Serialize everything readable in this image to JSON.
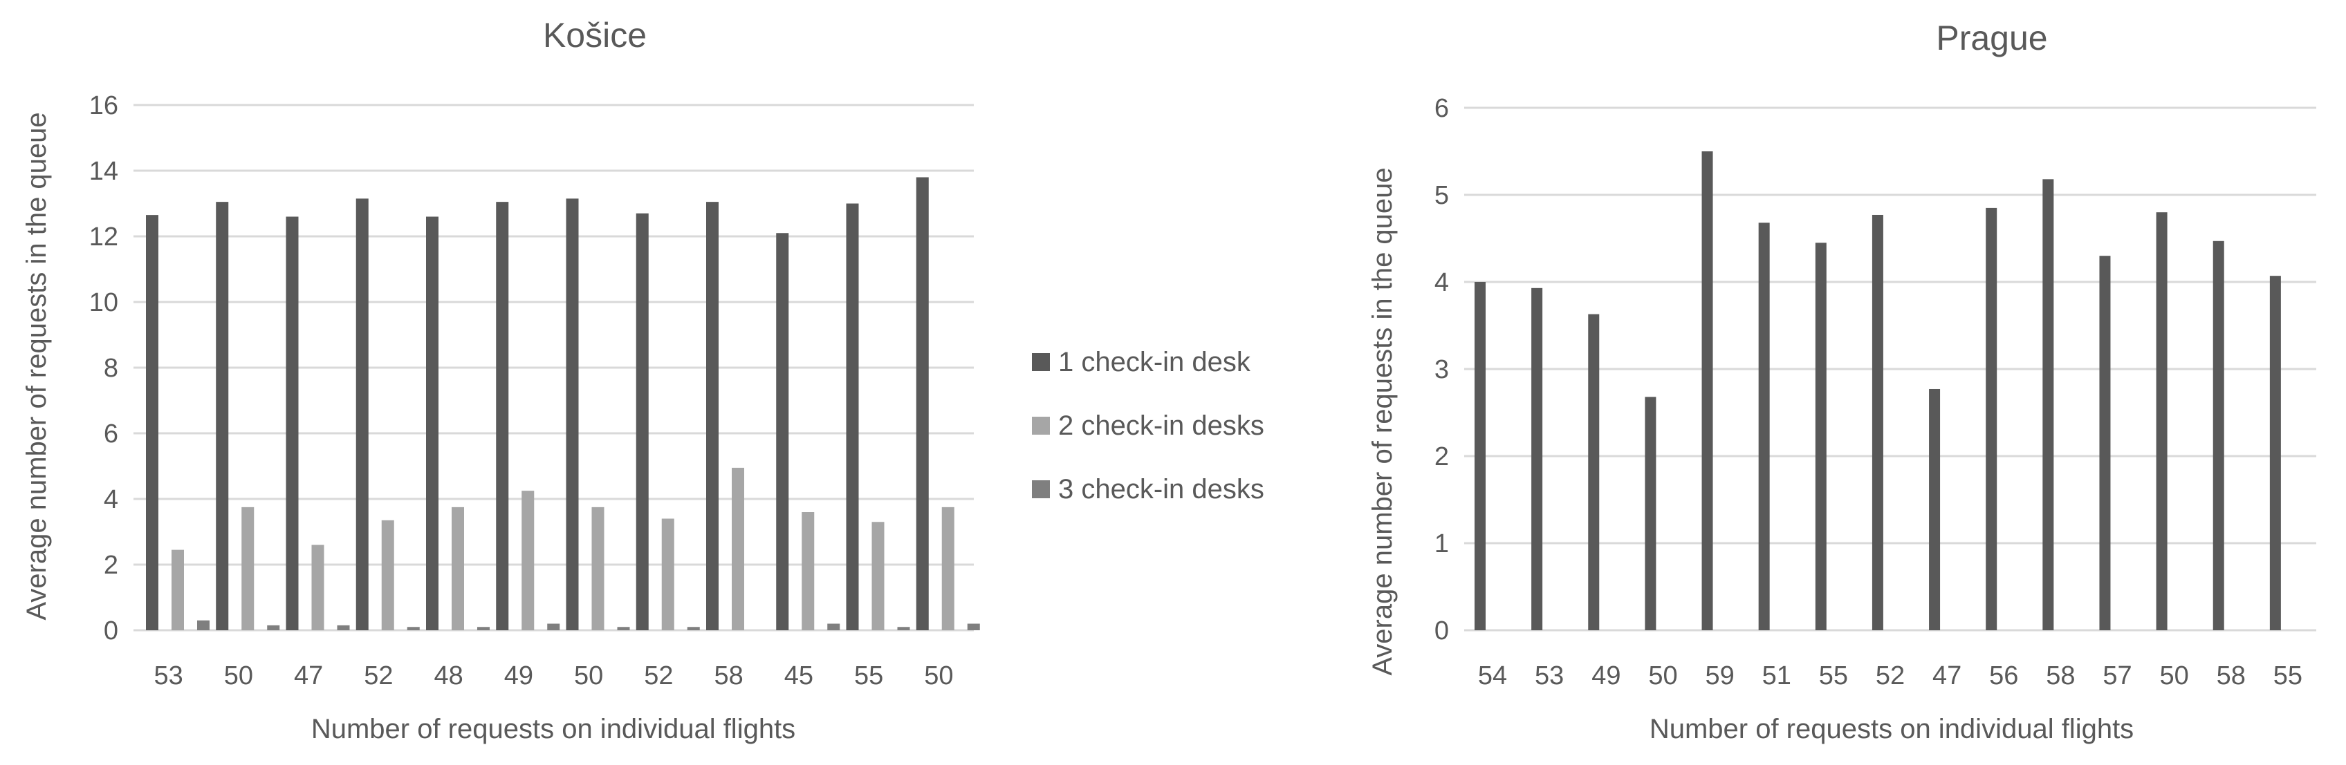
{
  "colors": {
    "series1": "#595959",
    "series2": "#a6a6a6",
    "series3": "#7f7f7f",
    "text": "#595959",
    "grid": "#d9d9d9"
  },
  "legend": {
    "items": [
      "1 check-in desk",
      "2 check-in desks",
      "3 check-in desks"
    ]
  },
  "chart_data": [
    {
      "type": "bar",
      "title": "Košice",
      "xlabel": "Number of requests on individual flights",
      "ylabel": "Average number of requests in the queue",
      "ylim": [
        0,
        16
      ],
      "yticks": [
        0,
        2,
        4,
        6,
        8,
        10,
        12,
        14,
        16
      ],
      "grid": true,
      "categories": [
        "53",
        "50",
        "47",
        "52",
        "48",
        "49",
        "50",
        "52",
        "58",
        "45",
        "55",
        "50"
      ],
      "series": [
        {
          "name": "1 check-in desk",
          "values": [
            12.65,
            13.05,
            12.6,
            13.15,
            12.6,
            13.05,
            13.15,
            12.7,
            13.05,
            12.1,
            13.0,
            13.8
          ]
        },
        {
          "name": "2 check-in desks",
          "values": [
            2.45,
            3.75,
            2.6,
            3.35,
            3.75,
            4.25,
            3.75,
            3.4,
            4.95,
            3.6,
            3.3,
            3.75
          ]
        },
        {
          "name": "3 check-in desks",
          "values": [
            0.3,
            0.15,
            0.15,
            0.1,
            0.1,
            0.2,
            0.1,
            0.1,
            0.0,
            0.2,
            0.1,
            0.2
          ]
        }
      ]
    },
    {
      "type": "bar",
      "title": "Prague",
      "xlabel": "Number of requests on individual flights",
      "ylabel": "Average number of requests in the queue",
      "ylim": [
        0,
        6
      ],
      "yticks": [
        0,
        1,
        2,
        3,
        4,
        5,
        6
      ],
      "grid": true,
      "categories": [
        "54",
        "53",
        "49",
        "50",
        "59",
        "51",
        "55",
        "52",
        "47",
        "56",
        "58",
        "57",
        "50",
        "58",
        "55"
      ],
      "series": [
        {
          "values": [
            4.0,
            3.93,
            3.63,
            2.68,
            5.5,
            4.68,
            4.45,
            4.77,
            2.77,
            4.85,
            5.18,
            4.3,
            4.8,
            4.47,
            4.07
          ]
        }
      ]
    }
  ]
}
